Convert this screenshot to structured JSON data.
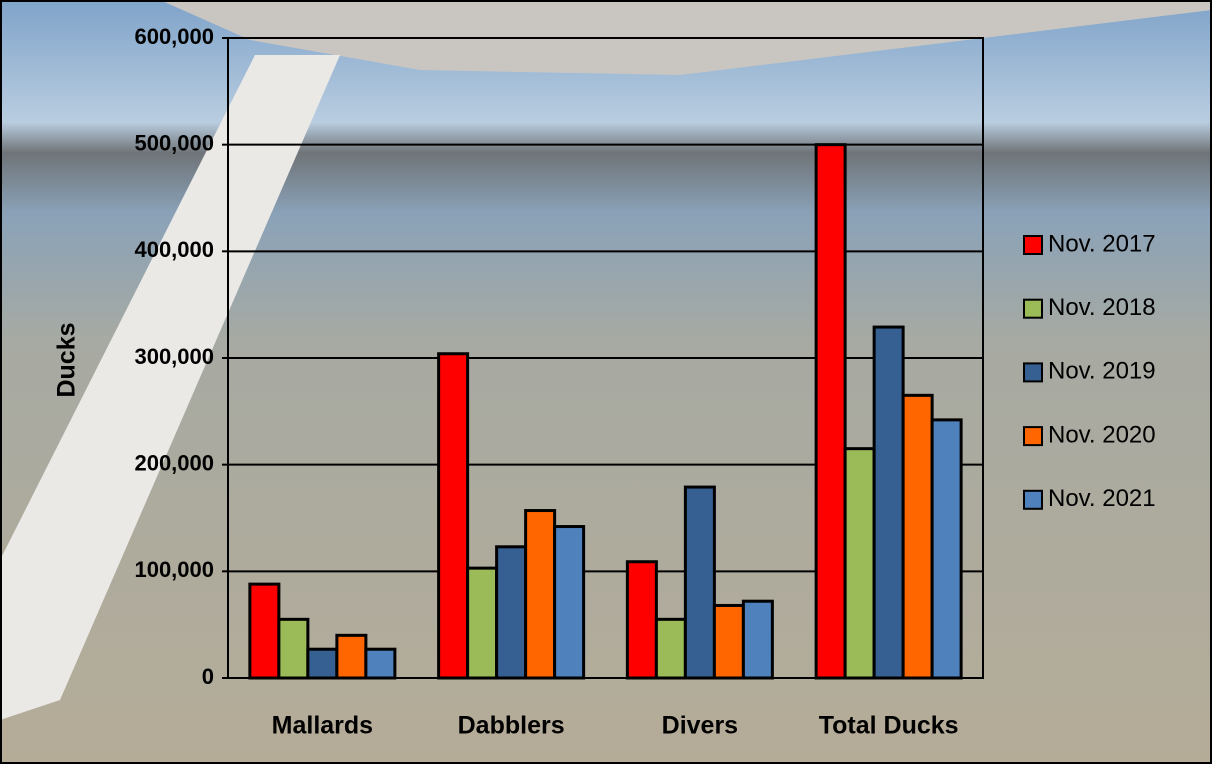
{
  "chart_data": {
    "type": "bar",
    "axis_label_y": "Ducks",
    "categories": [
      "Mallards",
      "Dabblers",
      "Divers",
      "Total Ducks"
    ],
    "series": [
      {
        "name": "Nov. 2017",
        "color": "#ff0000",
        "values": [
          88000,
          304000,
          109000,
          500000
        ]
      },
      {
        "name": "Nov. 2018",
        "color": "#9bbb59",
        "values": [
          55000,
          103000,
          55000,
          215000
        ]
      },
      {
        "name": "Nov. 2019",
        "color": "#376092",
        "values": [
          27000,
          123000,
          179000,
          329000
        ]
      },
      {
        "name": "Nov. 2020",
        "color": "#ff6600",
        "values": [
          40000,
          157000,
          68000,
          265000
        ]
      },
      {
        "name": "Nov. 2021",
        "color": "#4f81bd",
        "values": [
          27000,
          142000,
          72000,
          242000
        ]
      }
    ],
    "ylim": [
      0,
      600000
    ],
    "yticks": [
      0,
      {
        "value": 100000,
        "label": "100,000"
      },
      {
        "value": 200000,
        "label": "200,000"
      },
      {
        "value": 300000,
        "label": "300,000"
      },
      {
        "value": 400000,
        "label": "400,000"
      },
      {
        "value": 500000,
        "label": "500,000"
      },
      {
        "value": 600000,
        "label": "600,000"
      }
    ],
    "grid": true,
    "legend": "right"
  }
}
